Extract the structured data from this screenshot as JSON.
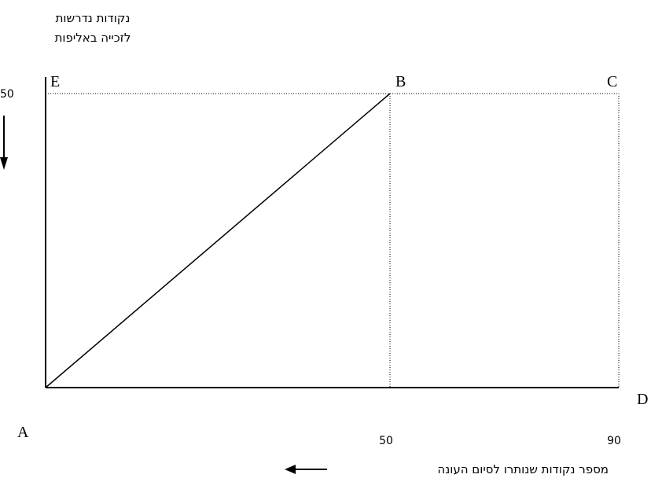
{
  "y_axis_label_lines": [
    "נקודות נדרשות",
    "לזכייה באליפות"
  ],
  "x_axis_label": "מספר נקודות שנותרו לסיום העונה",
  "y_tick": "50",
  "x_ticks": [
    "50",
    "90"
  ],
  "points": {
    "A": "A",
    "B": "B",
    "C": "C",
    "D": "D",
    "E": "E"
  },
  "colors": {
    "ink": "#000000",
    "background": "#ffffff"
  },
  "chart_data": {
    "type": "line",
    "title": "",
    "xlabel": "מספר נקודות שנותרו לסיום העונה",
    "ylabel": "נקודות נדרשות לזכייה באליפות",
    "xlim": [
      0,
      90
    ],
    "ylim": [
      0,
      50
    ],
    "series": [
      {
        "x": [
          0,
          50
        ],
        "y": [
          0,
          50
        ]
      }
    ],
    "reference_lines": [
      {
        "from": [
          0,
          50
        ],
        "to": [
          90,
          50
        ],
        "style": "dotted"
      },
      {
        "from": [
          50,
          0
        ],
        "to": [
          50,
          50
        ],
        "style": "dotted"
      },
      {
        "from": [
          90,
          0
        ],
        "to": [
          90,
          50
        ],
        "style": "dotted"
      }
    ],
    "points": [
      {
        "label": "A",
        "x": 0,
        "y": 0
      },
      {
        "label": "B",
        "x": 50,
        "y": 50
      },
      {
        "label": "C",
        "x": 90,
        "y": 50
      },
      {
        "label": "D",
        "x": 90,
        "y": 0
      },
      {
        "label": "E",
        "x": 0,
        "y": 50
      }
    ]
  }
}
